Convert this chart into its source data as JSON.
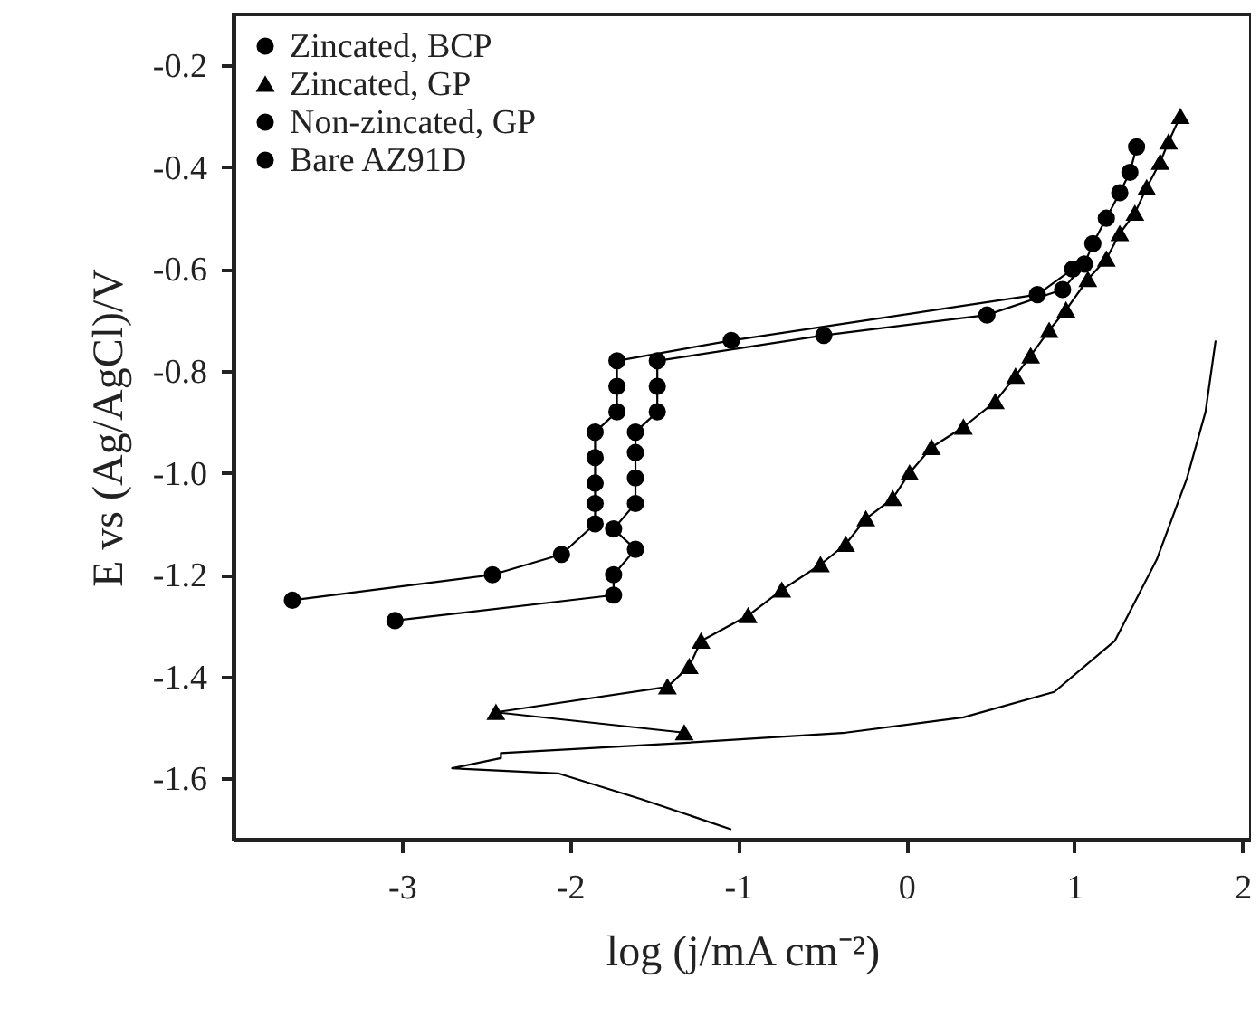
{
  "chart_data": {
    "type": "line",
    "xlabel": "log (j/mA cm⁻²)",
    "ylabel": "E vs (Ag/AgCl)/V",
    "xlim": [
      -4,
      2.05
    ],
    "ylim": [
      -1.72,
      -0.1
    ],
    "xticks": [
      -3,
      -2,
      -1,
      0,
      1,
      2
    ],
    "yticks": [
      -1.6,
      -1.4,
      -1.2,
      {
        "value": -1.0,
        "label": "-1.0"
      },
      -0.8,
      -0.6,
      -0.4,
      -0.2
    ],
    "grid": false,
    "legend": "top left",
    "line_style": "solid",
    "series": [
      {
        "name": "Zincated, BCP",
        "color": "#000000",
        "marker": "circle",
        "x": [
          -3.65,
          -2.46,
          -2.05,
          -1.85,
          -1.85,
          -1.85,
          -1.85,
          -1.85,
          -1.72,
          -1.72,
          -1.72,
          -1.04,
          0.78,
          0.99
        ],
        "values": [
          -1.25,
          -1.2,
          -1.16,
          -1.1,
          -1.06,
          -1.02,
          -0.97,
          -0.92,
          -0.88,
          -0.83,
          -0.78,
          -0.74,
          -0.65,
          -0.6
        ]
      },
      {
        "name": "Zincated, GP",
        "color": "#000000",
        "marker": "triangle",
        "x": [
          -1.32,
          -2.44,
          -1.42,
          -1.29,
          -1.22,
          -0.94,
          -0.74,
          -0.51,
          -0.36,
          -0.24,
          -0.08,
          0.02,
          0.15,
          0.34,
          0.53,
          0.65,
          0.74,
          0.85,
          0.95,
          1.08,
          1.19,
          1.27,
          1.36,
          1.43,
          1.51,
          1.56,
          1.63
        ],
        "values": [
          -1.51,
          -1.47,
          -1.42,
          -1.38,
          -1.33,
          -1.28,
          -1.23,
          -1.18,
          -1.14,
          -1.09,
          -1.05,
          -1.0,
          -0.95,
          -0.91,
          -0.86,
          -0.81,
          -0.77,
          -0.72,
          -0.68,
          -0.62,
          -0.58,
          -0.53,
          -0.49,
          -0.44,
          -0.39,
          -0.35,
          -0.3
        ]
      },
      {
        "name": "Non-zincated, GP",
        "color": "#000000",
        "marker": "circle",
        "x": [
          -3.04,
          -1.74,
          -1.74,
          -1.61,
          -1.74,
          -1.61,
          -1.61,
          -1.61,
          -1.61,
          -1.48,
          -1.48,
          -1.48,
          -0.49,
          0.48,
          0.93,
          1.06,
          1.11,
          1.19,
          1.27,
          1.33,
          1.37
        ],
        "values": [
          -1.29,
          -1.24,
          -1.2,
          -1.15,
          -1.11,
          -1.06,
          -1.01,
          -0.96,
          -0.92,
          -0.88,
          -0.83,
          -0.78,
          -0.73,
          -0.69,
          -0.64,
          -0.59,
          -0.55,
          -0.5,
          -0.45,
          -0.41,
          -0.36
        ]
      },
      {
        "name": "Bare AZ91D",
        "color": "#000000",
        "marker": "none",
        "x": [
          -1.04,
          -1.58,
          -2.07,
          -2.7,
          -2.7,
          -2.41,
          -2.41,
          -1.32,
          -0.36,
          0.34,
          0.88,
          1.24,
          1.49,
          1.67,
          1.78,
          1.84
        ],
        "values": [
          -1.7,
          -1.64,
          -1.59,
          -1.58,
          -1.58,
          -1.56,
          -1.55,
          -1.53,
          -1.51,
          -1.48,
          -1.43,
          -1.33,
          -1.17,
          -1.01,
          -0.88,
          -0.74
        ]
      }
    ]
  }
}
